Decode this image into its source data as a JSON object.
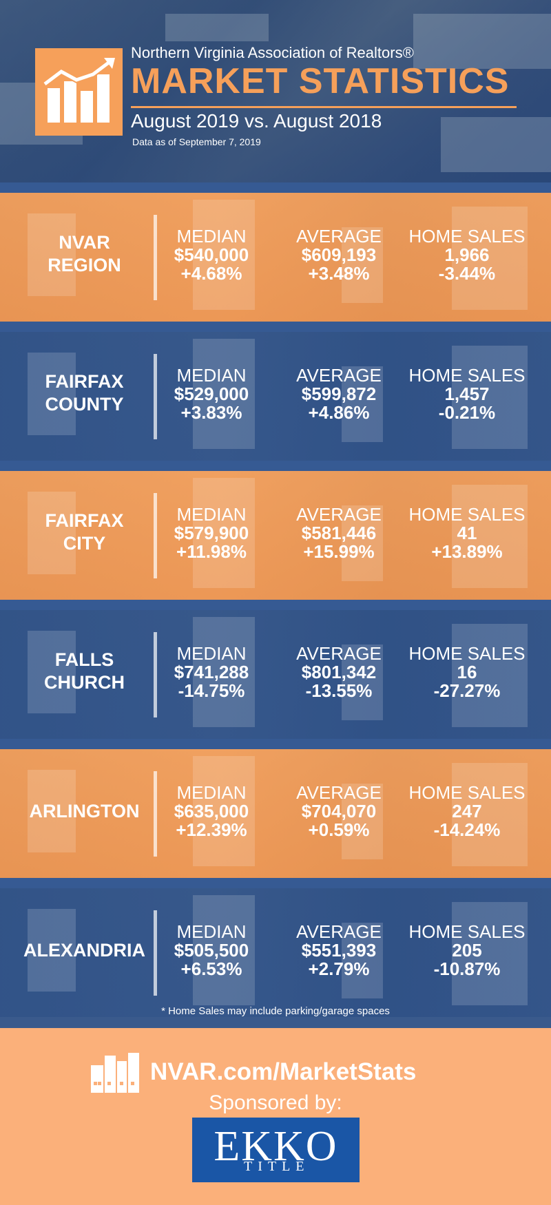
{
  "header": {
    "org": "Northern Virginia Association of Realtors®",
    "title": "MARKET STATISTICS",
    "subtitle": "August 2019 vs. August 2018",
    "data_as_of": "Data as of September 7, 2019",
    "logo_icon": "rising-bar-chart-icon",
    "accent_color": "#f6a05a"
  },
  "stat_labels": {
    "median": "MEDIAN",
    "average": "AVERAGE",
    "home_sales": "HOME SALES"
  },
  "regions": [
    {
      "name_line1": "NVAR",
      "name_line2": "REGION",
      "median": "$540,000",
      "median_change": "+4.68%",
      "average": "$609,193",
      "average_change": "+3.48%",
      "sales": "1,966",
      "sales_change": "-3.44%"
    },
    {
      "name_line1": "FAIRFAX",
      "name_line2": "COUNTY",
      "median": "$529,000",
      "median_change": "+3.83%",
      "average": "$599,872",
      "average_change": "+4.86%",
      "sales": "1,457",
      "sales_change": "-0.21%"
    },
    {
      "name_line1": "FAIRFAX",
      "name_line2": "CITY",
      "median": "$579,900",
      "median_change": "+11.98%",
      "average": "$581,446",
      "average_change": "+15.99%",
      "sales": "41",
      "sales_change": "+13.89%"
    },
    {
      "name_line1": "FALLS",
      "name_line2": "CHURCH",
      "median": "$741,288",
      "median_change": "-14.75%",
      "average": "$801,342",
      "average_change": "-13.55%",
      "sales": "16",
      "sales_change": "-27.27%"
    },
    {
      "name_line1": "ARLINGTON",
      "name_line2": "",
      "median": "$635,000",
      "median_change": "+12.39%",
      "average": "$704,070",
      "average_change": "+0.59%",
      "sales": "247",
      "sales_change": "-14.24%"
    },
    {
      "name_line1": "ALEXANDRIA",
      "name_line2": "",
      "median": "$505,500",
      "median_change": "+6.53%",
      "average": "$551,393",
      "average_change": "+2.79%",
      "sales": "205",
      "sales_change": "-10.87%"
    }
  ],
  "footnote": "* Home Sales may include parking/garage spaces",
  "footer": {
    "url": "NVAR.com/MarketStats",
    "sponsored_by": "Sponsored by:",
    "sponsor_name": "EKKO",
    "sponsor_sub": "TITLE",
    "sponsor_color": "#1a56a6",
    "icon": "buildings-icon"
  }
}
